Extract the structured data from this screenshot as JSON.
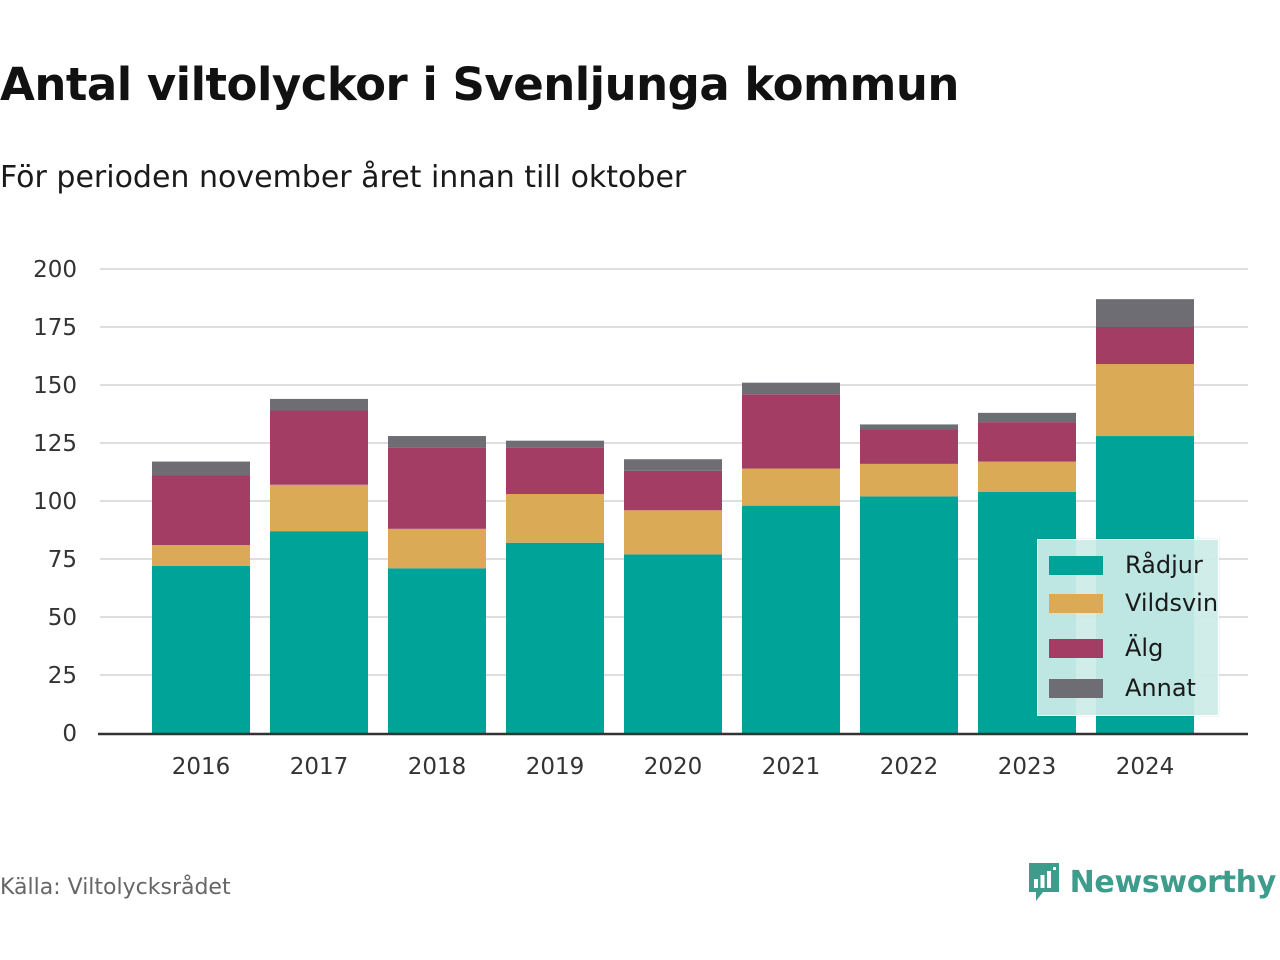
{
  "title": "Antal viltolyckor i Svenljunga kommun",
  "subtitle": "För perioden november året innan till oktober",
  "source": "Källa: Viltolycksrådet",
  "brand": {
    "name": "Newsworthy",
    "icon": "newsworthy-logo-icon",
    "color": "#3d9c8b"
  },
  "colors": {
    "grid": "#dedede",
    "axis": "#333333",
    "tick_text": "#333333"
  },
  "chart_data": {
    "type": "bar",
    "stacked": true,
    "categories": [
      "2016",
      "2017",
      "2018",
      "2019",
      "2020",
      "2021",
      "2022",
      "2023",
      "2024"
    ],
    "series": [
      {
        "name": "Rådjur",
        "color": "#00a398",
        "values": [
          72,
          87,
          71,
          82,
          77,
          98,
          102,
          104,
          128
        ]
      },
      {
        "name": "Vildsvin",
        "color": "#dbaa57",
        "values": [
          9,
          20,
          17,
          21,
          19,
          16,
          14,
          13,
          31
        ]
      },
      {
        "name": "Älg",
        "color": "#a33d64",
        "values": [
          30,
          32,
          35,
          20,
          17,
          32,
          15,
          17,
          16
        ]
      },
      {
        "name": "Annat",
        "color": "#6e6d74",
        "values": [
          6,
          5,
          5,
          3,
          5,
          5,
          2,
          4,
          12
        ]
      }
    ],
    "ylim": [
      0,
      200
    ],
    "yticks": [
      0,
      25,
      50,
      75,
      100,
      125,
      150,
      175,
      200
    ],
    "grid": true,
    "legend_position": "bottom-right"
  }
}
